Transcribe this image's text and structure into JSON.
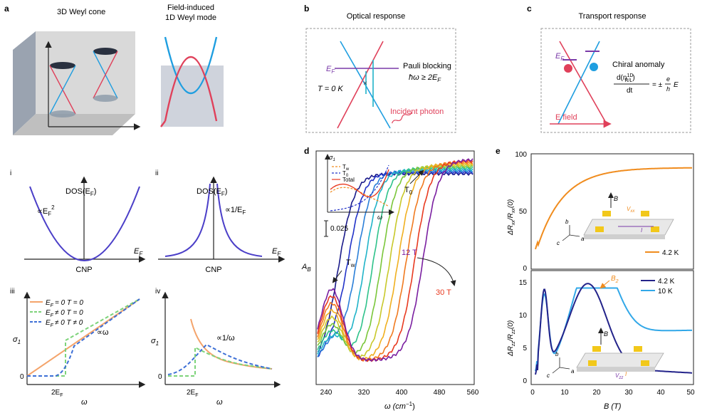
{
  "panel_labels": {
    "a": "a",
    "b": "b",
    "c": "c",
    "d": "d",
    "e": "e",
    "i": "i",
    "ii": "ii",
    "iii": "iii",
    "iv": "iv"
  },
  "panel_a": {
    "title_left": "3D Weyl cone",
    "title_right_1": "Field-induced",
    "title_right_2": "1D Weyl mode"
  },
  "panel_b": {
    "title": "Optical response",
    "ef": "E",
    "ef_sub": "F",
    "temp": "T = 0 K",
    "pauli": "Pauli blocking",
    "pauli_eq": "ħω ≥ 2E",
    "pauli_eq_sub": "F",
    "photon": "Incident photon"
  },
  "panel_c": {
    "title": "Transport response",
    "ef": "E",
    "ef_sub": "F",
    "chiral": "Chiral anomaly",
    "eq_num": "d(n",
    "eq_sup": "1D",
    "eq_sub": "R/L",
    "eq_close": ")",
    "eq_den": "dt",
    "eq_rhs": "= ±",
    "eq_e": "e",
    "eq_h": "h",
    "eq_E": "E",
    "field": "E field"
  },
  "panel_i": {
    "ylabel": "DOS(E",
    "ylabel_sub": "F",
    "ylabel_close": ")",
    "curve": "∝E",
    "curve_sub": "F",
    "curve_sup": "2",
    "xlabel": "E",
    "xlabel_sub": "F",
    "cnp": "CNP"
  },
  "panel_ii": {
    "ylabel": "DOS(E",
    "ylabel_sub": "F",
    "ylabel_close": ")",
    "curve": "∝1/E",
    "curve_sub": "F",
    "xlabel": "E",
    "xlabel_sub": "F",
    "cnp": "CNP"
  },
  "panel_iii": {
    "ylabel": "σ",
    "ylabel_sub": "1",
    "xlabel": "ω",
    "tick0": "0",
    "xtick": "2E",
    "xtick_sub": "F",
    "curve": "∝ω",
    "legend": [
      {
        "label": "E",
        "sub": "F",
        "rest": "= 0 T = 0",
        "color": "#f4a46b"
      },
      {
        "label": "E",
        "sub": "F",
        "rest": "≠ 0 T = 0",
        "color": "#7dd37a"
      },
      {
        "label": "E",
        "sub": "F",
        "rest": "≠ 0 T ≠ 0",
        "color": "#3d6fd6"
      }
    ]
  },
  "panel_iv": {
    "ylabel": "σ",
    "ylabel_sub": "1",
    "xlabel": "ω",
    "tick0": "0",
    "xtick": "2E",
    "xtick_sub": "F",
    "curve": "∝1/ω"
  },
  "panel_d": {
    "ylabel": "A",
    "ylabel_sub": "B",
    "xlabel": "ω (cm",
    "xlabel_sup": "−1",
    "xlabel_close": ")",
    "xticks": [
      "240",
      "320",
      "400",
      "480",
      "560"
    ],
    "t0": "T",
    "t0_sub": "0",
    "tw": "T",
    "tw_sub": "w",
    "field_low": "12 T",
    "field_high": "30 T",
    "scale": "0.025",
    "inset_ylabel": "σ",
    "inset_ylabel_sub": "1",
    "inset_xlabel": "ω",
    "inset_legend": [
      "T",
      "T",
      "Total"
    ],
    "inset_legend_sub": [
      "w",
      "0",
      ""
    ],
    "series_colors": [
      "#1a1a8a",
      "#2233c8",
      "#2a7fd8",
      "#1fb3c8",
      "#2ec28a",
      "#7ac63a",
      "#c8c82a",
      "#f0b020",
      "#f07a20",
      "#e83a20",
      "#7a1fa0"
    ]
  },
  "panel_e": {
    "top_ylabel": "ΔR",
    "top_ylabel_sub": "xx",
    "top_ylabel_mid": "/R",
    "top_ylabel_sub2": "xx",
    "top_ylabel_end": "(0)",
    "top_yticks": [
      "0",
      "50",
      "100"
    ],
    "top_legend": "4.2 K",
    "top_color": "#f08c1e",
    "bot_ylabel": "ΔR",
    "bot_ylabel_sub": "zz",
    "bot_ylabel_mid": "/R",
    "bot_ylabel_sub2": "zz",
    "bot_ylabel_end": "(0)",
    "bot_yticks": [
      "0",
      "5",
      "10",
      "15"
    ],
    "bot_legend": [
      "4.2 K",
      "10 K"
    ],
    "bot_colors": [
      "#23238a",
      "#32a8e8"
    ],
    "b2": "B",
    "b2_sub": "2",
    "xlabel": "B (T)",
    "xticks": [
      "0",
      "10",
      "20",
      "30",
      "40",
      "50"
    ],
    "schematic_top": {
      "b": "B",
      "v": "V",
      "v_sub": "xx",
      "i": "I",
      "axes": [
        "b",
        "c",
        "a"
      ]
    },
    "schematic_bot": {
      "b": "B",
      "v": "V",
      "v_sub": "zz",
      "i": "I",
      "axes": [
        "b",
        "c",
        "a"
      ]
    }
  }
}
